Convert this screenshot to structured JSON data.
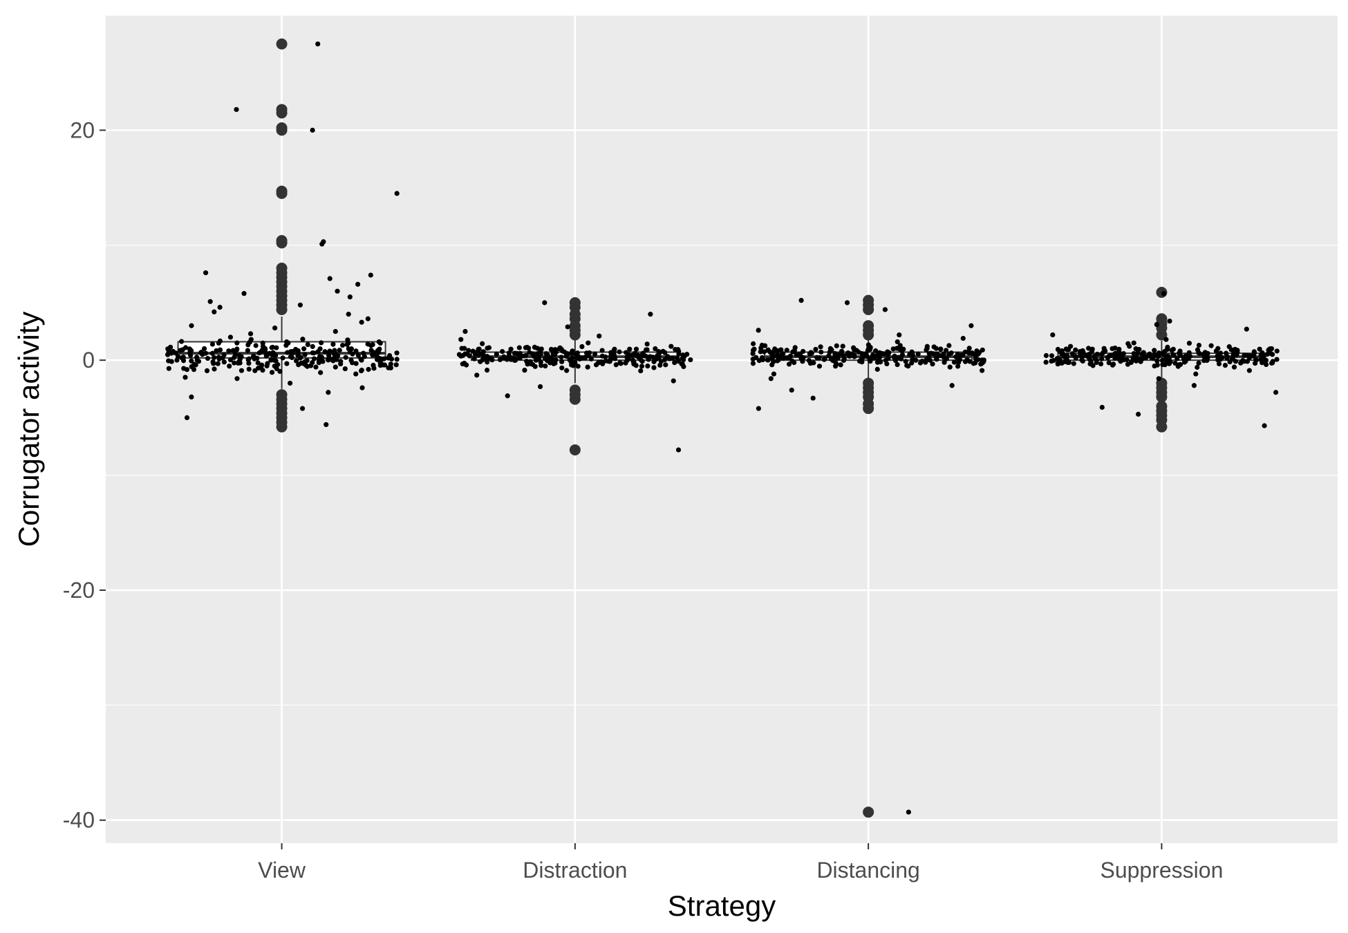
{
  "chart_data": {
    "type": "boxplot",
    "xlabel": "Strategy",
    "ylabel": "Corrugator activity",
    "categories": [
      "View",
      "Distraction",
      "Distancing",
      "Suppression"
    ],
    "ylim": [
      -42,
      30
    ],
    "yticks": [
      20,
      0,
      -20,
      -40
    ],
    "ytick_labels": [
      "20",
      "0",
      "-20",
      "-40"
    ],
    "grid": true,
    "legend": "none",
    "series": [
      {
        "category": "View",
        "q1": 0.2,
        "median": 0.6,
        "q3": 1.6,
        "whisker_low": -2.5,
        "whisker_high": 3.8,
        "outliers": [
          27.5,
          21.8,
          21.5,
          20.2,
          20.0,
          14.7,
          14.5,
          10.4,
          10.2,
          8.0,
          7.6,
          7.2,
          6.8,
          6.4,
          6.0,
          5.6,
          5.2,
          4.8,
          4.4,
          -3.0,
          -3.4,
          -3.8,
          -4.2,
          -4.6,
          -5.0,
          -5.4,
          -5.8
        ]
      },
      {
        "category": "Distraction",
        "q1": 0.0,
        "median": 0.3,
        "q3": 0.7,
        "whisker_low": -2.0,
        "whisker_high": 2.0,
        "outliers": [
          5.0,
          4.6,
          4.0,
          3.6,
          3.0,
          2.6,
          2.2,
          -2.6,
          -3.0,
          -3.4,
          -7.8
        ]
      },
      {
        "category": "Distancing",
        "q1": 0.0,
        "median": 0.3,
        "q3": 0.7,
        "whisker_low": -1.8,
        "whisker_high": 1.9,
        "outliers": [
          5.2,
          4.8,
          4.4,
          3.0,
          2.6,
          2.2,
          -2.0,
          -2.4,
          -2.8,
          -3.2,
          -3.8,
          -4.2,
          -39.3
        ]
      },
      {
        "category": "Suppression",
        "q1": 0.0,
        "median": 0.3,
        "q3": 0.6,
        "whisker_low": -1.8,
        "whisker_high": 1.7,
        "outliers": [
          5.9,
          3.6,
          3.2,
          2.8,
          2.2,
          -2.0,
          -2.4,
          -2.8,
          -3.2,
          -4.0,
          -4.4,
          -4.8,
          -5.2,
          -5.8
        ]
      }
    ],
    "jitter_points": {
      "View": [
        27.5,
        21.8,
        20.0,
        14.5,
        10.3,
        10.1,
        7.6,
        7.4,
        7.1,
        6.6,
        6.0,
        5.8,
        5.5,
        5.1,
        4.8,
        4.6,
        4.2,
        4.0,
        3.6,
        3.3,
        3.0,
        2.8,
        2.5,
        2.3,
        2.0,
        1.8,
        1.6,
        1.4,
        1.2,
        1.0,
        0.8,
        0.6,
        0.5,
        0.4,
        0.3,
        0.2,
        0.1,
        0.0,
        -0.1,
        -0.3,
        -0.5,
        -0.8,
        -1.2,
        -1.6,
        -2.0,
        -2.4,
        -2.8,
        -3.2,
        -4.2,
        -5.0,
        -5.6
      ],
      "Distraction": [
        5.0,
        4.0,
        2.9,
        2.5,
        2.1,
        1.8,
        1.5,
        1.2,
        1.0,
        0.8,
        0.6,
        0.5,
        0.4,
        0.3,
        0.2,
        0.1,
        0.0,
        -0.1,
        -0.2,
        -0.4,
        -0.6,
        -0.9,
        -1.3,
        -1.8,
        -2.3,
        -3.1,
        -7.8
      ],
      "Distancing": [
        5.2,
        5.0,
        4.4,
        3.0,
        2.6,
        2.2,
        1.9,
        1.6,
        1.3,
        1.1,
        0.9,
        0.7,
        0.5,
        0.4,
        0.3,
        0.2,
        0.1,
        0.0,
        -0.1,
        -0.2,
        -0.4,
        -0.6,
        -0.9,
        -1.2,
        -1.6,
        -2.2,
        -2.6,
        -3.3,
        -4.2,
        -39.3
      ],
      "Suppression": [
        5.8,
        3.4,
        3.1,
        2.7,
        2.2,
        1.8,
        1.5,
        1.2,
        1.0,
        0.8,
        0.6,
        0.5,
        0.4,
        0.3,
        0.2,
        0.1,
        0.0,
        -0.1,
        -0.2,
        -0.4,
        -0.6,
        -0.9,
        -1.2,
        -1.6,
        -2.2,
        -2.8,
        -4.1,
        -4.7,
        -5.7
      ]
    }
  }
}
